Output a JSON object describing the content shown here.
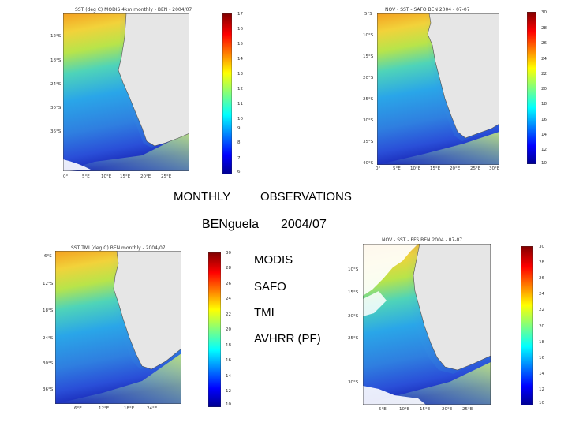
{
  "slide": {
    "heading_left": "MONTHLY",
    "heading_right": "OBSERVATIONS",
    "region": "BENguela",
    "period": "2004/07",
    "products": [
      "MODIS",
      "SAFO",
      "TMI",
      "AVHRR (PF)"
    ]
  },
  "maps": [
    {
      "id": "modis",
      "caption": "SST (deg C) MODIS 4km monthly - BEN - 2004/07",
      "lat_labels": [
        "12°S",
        "18°S",
        "24°S",
        "30°S",
        "36°S"
      ],
      "lon_labels": [
        "0°",
        "5°E",
        "10°E",
        "15°E",
        "20°E",
        "25°E"
      ],
      "colorbar_labels": [
        "17",
        "16",
        "15",
        "14",
        "13",
        "12",
        "11",
        "10",
        "9",
        "8",
        "7",
        "6"
      ]
    },
    {
      "id": "safo",
      "caption": "NOV - SST - SAFO BEN 2004 - 07-07",
      "lat_labels": [
        "5°S",
        "10°S",
        "15°S",
        "20°S",
        "25°S",
        "30°S",
        "35°S",
        "40°S"
      ],
      "lon_labels": [
        "0°",
        "5°E",
        "10°E",
        "15°E",
        "20°E",
        "25°E",
        "30°E"
      ],
      "colorbar_labels": [
        "30",
        "28",
        "26",
        "24",
        "22",
        "20",
        "18",
        "16",
        "14",
        "12",
        "10"
      ]
    },
    {
      "id": "tmi",
      "caption": "SST TMI (deg C) BEN monthly - 2004/07",
      "lat_labels": [
        "6°S",
        "12°S",
        "18°S",
        "24°S",
        "30°S",
        "36°S"
      ],
      "lon_labels": [
        "6°E",
        "12°E",
        "18°E",
        "24°E"
      ],
      "colorbar_labels": [
        "30",
        "28",
        "26",
        "24",
        "22",
        "20",
        "18",
        "16",
        "14",
        "12",
        "10"
      ]
    },
    {
      "id": "avhrr",
      "caption": "NOV - SST - PFS BEN 2004 - 07-07",
      "lat_labels": [
        "10°S",
        "15°S",
        "20°S",
        "25°S",
        "30°S"
      ],
      "lon_labels": [
        "5°E",
        "10°E",
        "15°E",
        "20°E",
        "25°E"
      ],
      "colorbar_labels": [
        "30",
        "28",
        "26",
        "24",
        "22",
        "20",
        "18",
        "16",
        "14",
        "12",
        "10"
      ]
    }
  ]
}
